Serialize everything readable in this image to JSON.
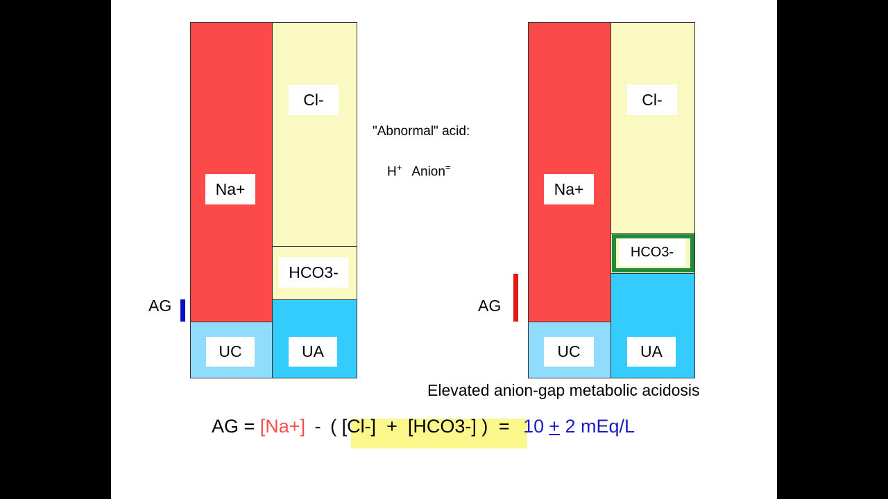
{
  "left_diagram": {
    "na_label": "Na+",
    "cl_label": "Cl-",
    "hco3_label": "HCO3-",
    "uc_label": "UC",
    "ua_label": "UA",
    "ag_label": "AG"
  },
  "right_diagram": {
    "na_label": "Na+",
    "cl_label": "Cl-",
    "hco3_label": "HCO3-",
    "uc_label": "UC",
    "ua_label": "UA",
    "ag_label": "AG",
    "caption": "Elevated anion-gap metabolic acidosis"
  },
  "middle": {
    "line1": "\"Abnormal\" acid:",
    "h": "H",
    "h_sup": "+",
    "anion": "Anion",
    "anion_sup": "="
  },
  "formula": {
    "lhs": "AG = ",
    "na": "[Na+]",
    "minus": " - ",
    "paren_expr": "( [Cl-]  +  [HCO3-] )",
    "equals": " = ",
    "value": "10",
    "pm": "+",
    "rest": " 2 mEq/L"
  },
  "colors": {
    "na": "#fc4a4a",
    "cl": "#fbf9c2",
    "ua": "#33ccfc",
    "uc": "#8fdcfc",
    "ag_normal": "#1010c0",
    "ag_elevated": "#e01a1a",
    "hco3_frame": "#1e8c3a",
    "formula_na": "#f05050",
    "formula_value": "#1a1ac8",
    "highlight": "#fbf78a"
  }
}
